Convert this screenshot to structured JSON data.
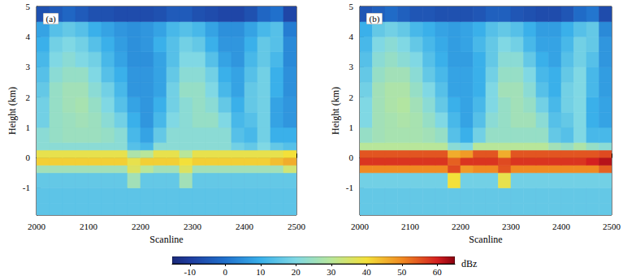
{
  "chart_data": [
    {
      "type": "heatmap",
      "title": "(a)",
      "x_label": "Scanline",
      "y_label": "Height (km)",
      "xlim": [
        2000,
        2500
      ],
      "xticks": [
        2000,
        2100,
        2200,
        2300,
        2400,
        2500
      ],
      "ylim": [
        -1.9,
        5
      ],
      "yticks": [
        -1,
        0,
        1,
        2,
        3,
        4,
        5
      ],
      "x_bins": [
        2000,
        2025,
        2050,
        2075,
        2100,
        2125,
        2150,
        2175,
        2200,
        2225,
        2250,
        2275,
        2300,
        2325,
        2350,
        2375,
        2400,
        2425,
        2450,
        2475,
        2500
      ],
      "y_bins": [
        -1.9,
        -1.5,
        -1,
        -0.5,
        -0.25,
        0,
        0.25,
        0.5,
        1,
        1.5,
        2,
        2.5,
        3,
        3.5,
        4,
        4.5,
        5
      ],
      "cells": [
        [
          15,
          15,
          15,
          15,
          15,
          15,
          15,
          15,
          15,
          15,
          15,
          15,
          15,
          15,
          15,
          15,
          15,
          15,
          15,
          15
        ],
        [
          15,
          15,
          15,
          15,
          15,
          15,
          15,
          15,
          15,
          15,
          15,
          15,
          15,
          15,
          15,
          15,
          15,
          15,
          15,
          15
        ],
        [
          16,
          16,
          16,
          16,
          16,
          16,
          16,
          26,
          16,
          16,
          16,
          26,
          16,
          16,
          16,
          16,
          16,
          16,
          16,
          16
        ],
        [
          26,
          26,
          26,
          26,
          26,
          26,
          26,
          36,
          30,
          26,
          26,
          36,
          26,
          26,
          26,
          26,
          26,
          26,
          26,
          34
        ],
        [
          42,
          42,
          42,
          42,
          42,
          42,
          42,
          38,
          42,
          42,
          42,
          40,
          42,
          42,
          42,
          42,
          42,
          42,
          44,
          46
        ],
        [
          38,
          38,
          38,
          38,
          38,
          38,
          38,
          28,
          30,
          38,
          38,
          30,
          38,
          38,
          38,
          38,
          38,
          38,
          38,
          40
        ],
        [
          22,
          22,
          22,
          22,
          22,
          22,
          22,
          14,
          12,
          22,
          22,
          22,
          22,
          22,
          22,
          18,
          16,
          20,
          16,
          14
        ],
        [
          22,
          24,
          25,
          25,
          25,
          24,
          22,
          12,
          8,
          16,
          22,
          22,
          22,
          22,
          22,
          14,
          12,
          18,
          10,
          10
        ],
        [
          18,
          24,
          25,
          26,
          25,
          22,
          18,
          10,
          6,
          12,
          20,
          22,
          24,
          24,
          20,
          12,
          14,
          18,
          8,
          6
        ],
        [
          18,
          24,
          26,
          27,
          24,
          20,
          14,
          8,
          6,
          10,
          18,
          22,
          24,
          22,
          16,
          10,
          16,
          18,
          8,
          6
        ],
        [
          16,
          24,
          26,
          26,
          22,
          18,
          12,
          6,
          6,
          8,
          18,
          24,
          24,
          20,
          12,
          8,
          16,
          18,
          10,
          5
        ],
        [
          14,
          22,
          24,
          24,
          20,
          14,
          10,
          6,
          6,
          8,
          16,
          22,
          22,
          18,
          10,
          8,
          14,
          18,
          10,
          5
        ],
        [
          12,
          20,
          22,
          20,
          18,
          12,
          8,
          5,
          5,
          8,
          14,
          20,
          20,
          14,
          8,
          6,
          12,
          16,
          12,
          4
        ],
        [
          10,
          18,
          20,
          18,
          14,
          10,
          7,
          5,
          6,
          10,
          14,
          18,
          16,
          10,
          6,
          6,
          10,
          16,
          14,
          4
        ],
        [
          8,
          14,
          16,
          14,
          10,
          8,
          6,
          5,
          6,
          8,
          12,
          14,
          12,
          8,
          5,
          5,
          8,
          12,
          14,
          2
        ],
        [
          -6,
          -4,
          -2,
          -4,
          -6,
          -6,
          -7,
          -7,
          -7,
          -6,
          -4,
          -4,
          -6,
          -7,
          -8,
          -8,
          -6,
          -2,
          0,
          -8
        ]
      ]
    },
    {
      "type": "heatmap",
      "title": "(b)",
      "x_label": "Scanline",
      "y_label": "Height (km)",
      "xlim": [
        2000,
        2500
      ],
      "xticks": [
        2000,
        2100,
        2200,
        2300,
        2400,
        2500
      ],
      "ylim": [
        -1.9,
        5
      ],
      "yticks": [
        -1,
        0,
        1,
        2,
        3,
        4,
        5
      ],
      "x_bins": [
        2000,
        2025,
        2050,
        2075,
        2100,
        2125,
        2150,
        2175,
        2200,
        2225,
        2250,
        2275,
        2300,
        2325,
        2350,
        2375,
        2400,
        2425,
        2450,
        2475,
        2500
      ],
      "y_bins": [
        -1.9,
        -1.5,
        -1,
        -0.5,
        -0.25,
        0,
        0.25,
        0.5,
        1,
        1.5,
        2,
        2.5,
        3,
        3.5,
        4,
        4.5,
        5
      ],
      "cells": [
        [
          16,
          16,
          16,
          16,
          16,
          16,
          16,
          16,
          16,
          16,
          16,
          16,
          16,
          16,
          16,
          16,
          16,
          16,
          16,
          16
        ],
        [
          16,
          16,
          16,
          16,
          16,
          16,
          16,
          16,
          16,
          16,
          16,
          16,
          16,
          16,
          16,
          16,
          16,
          16,
          16,
          16
        ],
        [
          18,
          18,
          18,
          18,
          18,
          18,
          18,
          40,
          18,
          18,
          18,
          38,
          18,
          18,
          18,
          18,
          18,
          18,
          18,
          18
        ],
        [
          50,
          50,
          50,
          50,
          50,
          50,
          50,
          56,
          48,
          50,
          50,
          55,
          50,
          50,
          50,
          50,
          50,
          50,
          50,
          54
        ],
        [
          58,
          58,
          58,
          58,
          58,
          58,
          58,
          54,
          58,
          58,
          58,
          56,
          58,
          58,
          58,
          58,
          58,
          58,
          60,
          62
        ],
        [
          55,
          55,
          55,
          55,
          55,
          55,
          55,
          46,
          48,
          55,
          55,
          46,
          55,
          55,
          55,
          55,
          55,
          55,
          55,
          56
        ],
        [
          30,
          30,
          30,
          30,
          30,
          30,
          30,
          22,
          20,
          30,
          30,
          30,
          30,
          30,
          30,
          26,
          24,
          28,
          24,
          22
        ],
        [
          24,
          26,
          27,
          27,
          27,
          26,
          24,
          14,
          10,
          18,
          24,
          24,
          24,
          24,
          24,
          16,
          14,
          20,
          12,
          12
        ],
        [
          20,
          26,
          27,
          28,
          27,
          24,
          20,
          12,
          8,
          14,
          22,
          24,
          26,
          26,
          22,
          14,
          16,
          20,
          10,
          8
        ],
        [
          20,
          26,
          28,
          29,
          26,
          22,
          16,
          10,
          8,
          12,
          20,
          24,
          26,
          24,
          18,
          12,
          18,
          20,
          10,
          8
        ],
        [
          18,
          26,
          28,
          28,
          24,
          20,
          14,
          8,
          8,
          10,
          20,
          26,
          26,
          22,
          14,
          10,
          18,
          20,
          12,
          7
        ],
        [
          16,
          24,
          26,
          26,
          22,
          16,
          12,
          8,
          8,
          10,
          18,
          24,
          24,
          20,
          12,
          10,
          16,
          20,
          12,
          7
        ],
        [
          14,
          22,
          24,
          22,
          20,
          14,
          10,
          7,
          7,
          10,
          16,
          22,
          22,
          16,
          10,
          8,
          14,
          18,
          14,
          6
        ],
        [
          12,
          20,
          22,
          20,
          16,
          12,
          9,
          7,
          8,
          12,
          16,
          20,
          18,
          12,
          8,
          8,
          12,
          18,
          16,
          6
        ],
        [
          10,
          16,
          18,
          16,
          12,
          10,
          8,
          7,
          8,
          10,
          14,
          16,
          14,
          10,
          7,
          7,
          10,
          14,
          16,
          4
        ],
        [
          -5,
          -3,
          -1,
          -3,
          -5,
          -5,
          -6,
          -6,
          -6,
          -5,
          -3,
          -3,
          -5,
          -6,
          -7,
          -7,
          -5,
          -1,
          1,
          -7
        ]
      ]
    },
    {
      "type": "colorbar",
      "x_label": "dBz",
      "xlim": [
        -15,
        65
      ],
      "xticks": [
        -10,
        0,
        10,
        20,
        30,
        40,
        50,
        60
      ]
    }
  ]
}
